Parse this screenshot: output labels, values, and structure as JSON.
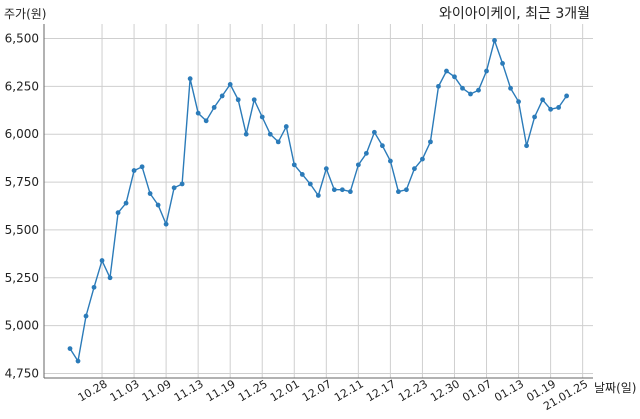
{
  "chart_data": {
    "type": "line",
    "title": "와이아이케이, 최근 3개월",
    "ylabel": "주가(원)",
    "xlabel": "날짜(일)",
    "ylim": [
      4750,
      6500
    ],
    "yticks": [
      4750,
      5000,
      5250,
      5500,
      5750,
      6000,
      6250,
      6500
    ],
    "ytick_labels": [
      "4,750",
      "5,000",
      "5,250",
      "5,500",
      "5,750",
      "6,000",
      "6,250",
      "6,500"
    ],
    "xtick_labels": [
      "10.28",
      "11.03",
      "11.09",
      "11.13",
      "11.19",
      "11.25",
      "12.01",
      "12.07",
      "12.11",
      "12.17",
      "12.23",
      "12.30",
      "01.07",
      "01.13",
      "01.19",
      "21.01.25"
    ],
    "xtick_index": [
      4,
      8,
      12,
      16,
      20,
      24,
      28,
      32,
      36,
      40,
      44,
      48,
      52,
      56,
      60,
      64
    ],
    "grid": true,
    "line_color": "#2b7bb9",
    "series": [
      {
        "values": [
          4880,
          4815,
          5050,
          5200,
          5340,
          5250,
          5590,
          5640,
          5810,
          5830,
          5690,
          5630,
          5530,
          5720,
          5740,
          6290,
          6110,
          6070,
          6140,
          6200,
          6260,
          6180,
          6000,
          6180,
          6090,
          6000,
          5960,
          6040,
          5840,
          5790,
          5740,
          5680,
          5820,
          5710,
          5710,
          5700,
          5840,
          5900,
          6010,
          5940,
          5860,
          5700,
          5710,
          5820,
          5870,
          5960,
          6250,
          6330,
          6300,
          6240,
          6210,
          6230,
          6330,
          6490,
          6370,
          6240,
          6170,
          5940,
          6090,
          6180,
          6130,
          6140,
          6200
        ]
      }
    ]
  }
}
